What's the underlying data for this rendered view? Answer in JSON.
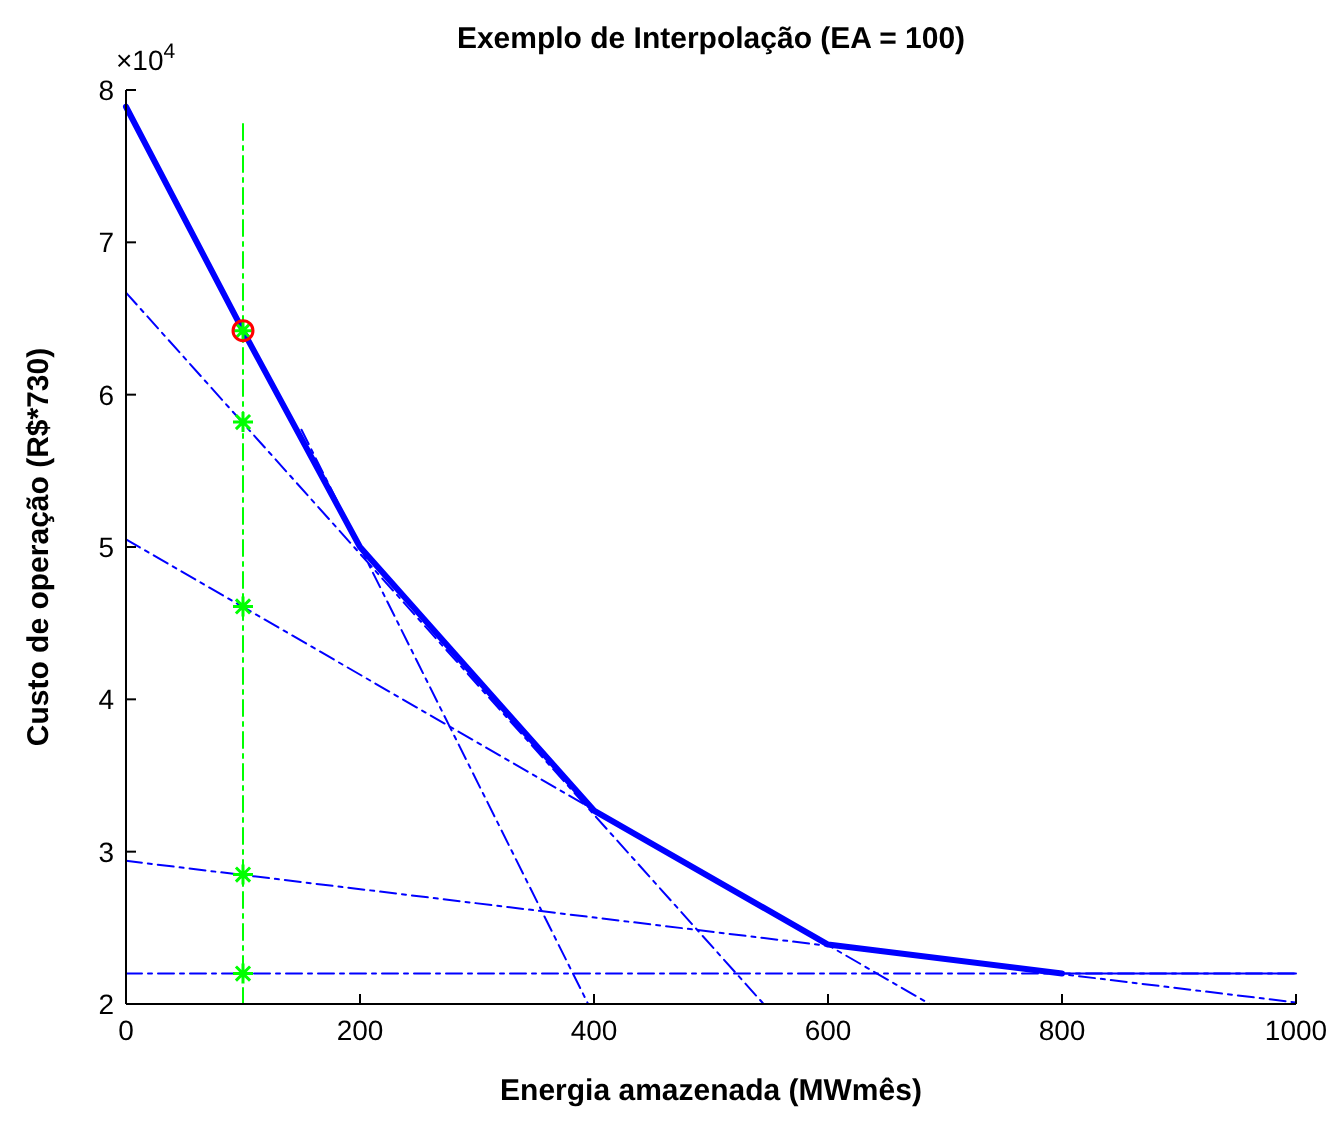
{
  "chart_data": {
    "type": "line",
    "title": "Exemplo de Interpolação (EA = 100)",
    "xlabel": "Energia amazenada (MWmês)",
    "ylabel": "Custo de operação (R$*730)",
    "annotations": [
      "×10$^{4}$"
    ],
    "xlim": [
      0,
      1000
    ],
    "xticks": [
      0,
      200,
      400,
      600,
      800,
      1000
    ],
    "ylim": [
      2,
      8
    ],
    "yticks": [
      2,
      3,
      4,
      5,
      6,
      7,
      8
    ],
    "grid": false,
    "marker": "none",
    "series": [
      {
        "color": "#0000ff",
        "x": [
          0,
          100,
          200,
          400,
          600,
          800
        ],
        "values": [
          7.89,
          6.42,
          5.0,
          3.27,
          2.39,
          2.2
        ],
        "line_style": "solid"
      },
      {
        "color": "#0000ff",
        "x": [
          800,
          1000
        ],
        "values": [
          2.2,
          2.2
        ],
        "line_style": "solid"
      },
      {
        "color": "#0000ff",
        "x": [
          150,
          395
        ],
        "values": [
          5.77,
          2.0
        ],
        "line_style": "dashed"
      },
      {
        "color": "#0000ff",
        "x": [
          0,
          545
        ],
        "values": [
          6.67,
          2.0
        ],
        "line_style": "dashed"
      },
      {
        "color": "#0000ff",
        "x": [
          0,
          687
        ],
        "values": [
          5.05,
          2.0
        ],
        "line_style": "dashed"
      },
      {
        "color": "#0000ff",
        "x": [
          0,
          1000
        ],
        "values": [
          2.94,
          2.01
        ],
        "line_style": "dashed"
      },
      {
        "color": "#0000ff",
        "x": [
          0,
          1000
        ],
        "values": [
          2.2,
          2.2
        ],
        "line_style": "dashed"
      },
      {
        "color": "#00ff00",
        "x": [
          100,
          100
        ],
        "values": [
          2.0,
          7.8
        ],
        "line_style": "dashed"
      },
      {
        "type": "scatter",
        "color": "#00ff00",
        "marker": "cross",
        "x": [
          100,
          100,
          100,
          100,
          100
        ],
        "values": [
          6.42,
          5.82,
          4.61,
          2.85,
          2.2
        ]
      },
      {
        "type": "scatter",
        "color": "#ff0000",
        "marker": "circle",
        "x": [
          100
        ],
        "values": [
          6.42
        ]
      }
    ]
  }
}
